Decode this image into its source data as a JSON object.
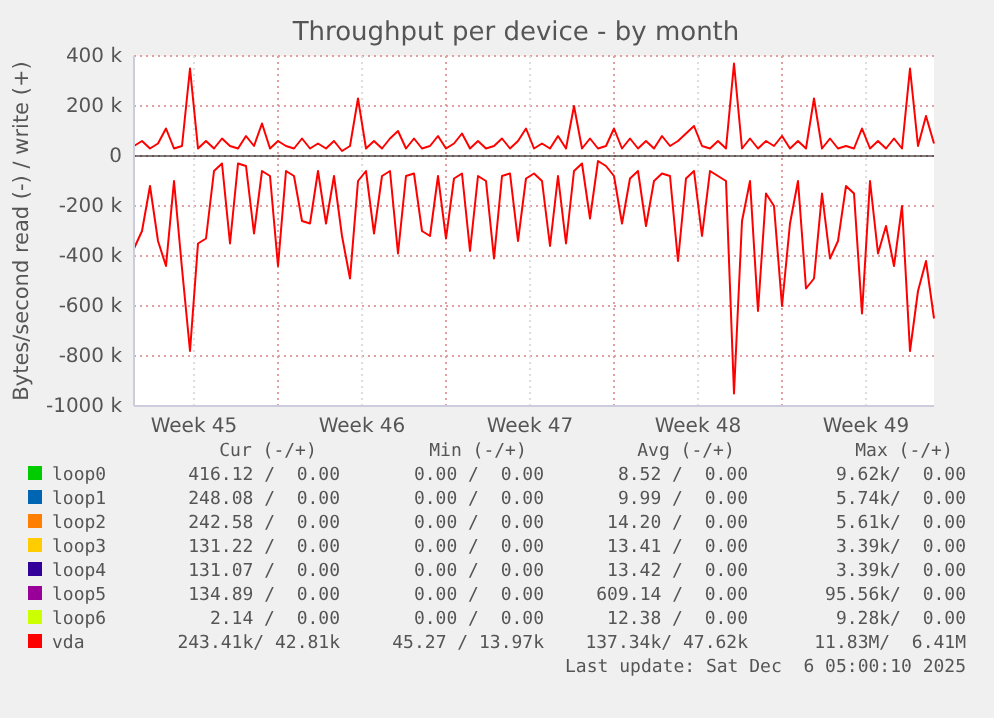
{
  "chart_data": {
    "type": "line",
    "title": "Throughput per device - by month",
    "ylabel": "Bytes/second read (-) / write (+)",
    "x": [
      "2025-11-04T00:00",
      "2025-11-04T08:00",
      "2025-11-04T16:00",
      "2025-11-05T00:00",
      "2025-11-05T08:00",
      "2025-11-05T16:00",
      "2025-11-06T00:00",
      "2025-11-06T08:00",
      "2025-11-06T16:00",
      "2025-11-07T00:00",
      "2025-11-07T08:00",
      "2025-11-07T16:00",
      "2025-11-08T00:00",
      "2025-11-08T08:00",
      "2025-11-08T16:00",
      "2025-11-09T00:00",
      "2025-11-09T08:00",
      "2025-11-09T16:00",
      "2025-11-10T00:00",
      "2025-11-10T08:00",
      "2025-11-10T16:00",
      "2025-11-11T00:00",
      "2025-11-11T08:00",
      "2025-11-11T16:00",
      "2025-11-12T00:00",
      "2025-11-12T08:00",
      "2025-11-12T16:00",
      "2025-11-13T00:00",
      "2025-11-13T08:00",
      "2025-11-13T16:00",
      "2025-11-14T00:00",
      "2025-11-14T08:00",
      "2025-11-14T16:00",
      "2025-11-15T00:00",
      "2025-11-15T08:00",
      "2025-11-15T16:00",
      "2025-11-16T00:00",
      "2025-11-16T08:00",
      "2025-11-16T16:00",
      "2025-11-17T00:00",
      "2025-11-17T08:00",
      "2025-11-17T16:00",
      "2025-11-18T00:00",
      "2025-11-18T08:00",
      "2025-11-18T16:00",
      "2025-11-19T00:00",
      "2025-11-19T08:00",
      "2025-11-19T16:00",
      "2025-11-20T00:00",
      "2025-11-20T08:00",
      "2025-11-20T16:00",
      "2025-11-21T00:00",
      "2025-11-21T08:00",
      "2025-11-21T16:00",
      "2025-11-22T00:00",
      "2025-11-22T08:00",
      "2025-11-22T16:00",
      "2025-11-23T00:00",
      "2025-11-23T08:00",
      "2025-11-23T16:00",
      "2025-11-24T00:00",
      "2025-11-24T08:00",
      "2025-11-24T16:00",
      "2025-11-25T00:00",
      "2025-11-25T08:00",
      "2025-11-25T16:00",
      "2025-11-26T00:00",
      "2025-11-26T08:00",
      "2025-11-26T16:00",
      "2025-11-27T00:00",
      "2025-11-27T08:00",
      "2025-11-27T16:00",
      "2025-11-28T00:00",
      "2025-11-28T08:00",
      "2025-11-28T16:00",
      "2025-11-29T00:00",
      "2025-11-29T08:00",
      "2025-11-29T16:00",
      "2025-11-30T00:00",
      "2025-11-30T08:00",
      "2025-11-30T16:00",
      "2025-12-01T00:00",
      "2025-12-01T08:00",
      "2025-12-01T16:00",
      "2025-12-02T00:00",
      "2025-12-02T08:00",
      "2025-12-02T16:00",
      "2025-12-03T00:00",
      "2025-12-03T08:00",
      "2025-12-03T16:00",
      "2025-12-04T00:00",
      "2025-12-04T08:00",
      "2025-12-04T16:00",
      "2025-12-05T00:00",
      "2025-12-05T08:00",
      "2025-12-05T16:00",
      "2025-12-06T00:00",
      "2025-12-06T08:00",
      "2025-12-06T16:00",
      "2025-12-07T00:00",
      "2025-12-07T08:00"
    ],
    "xlim": [
      "2025-11-04T00:00",
      "2025-12-07T08:00"
    ],
    "xticks": [
      {
        "value": "2025-11-06T12:00",
        "label": "Week 45"
      },
      {
        "value": "2025-11-10T00:00",
        "label": null
      },
      {
        "value": "2025-11-13T12:00",
        "label": "Week 46"
      },
      {
        "value": "2025-11-17T00:00",
        "label": null
      },
      {
        "value": "2025-11-20T12:00",
        "label": "Week 47"
      },
      {
        "value": "2025-11-24T00:00",
        "label": null
      },
      {
        "value": "2025-11-27T12:00",
        "label": "Week 48"
      },
      {
        "value": "2025-12-01T00:00",
        "label": null
      },
      {
        "value": "2025-12-04T12:00",
        "label": "Week 49"
      }
    ],
    "ylim": [
      -1000000,
      400000
    ],
    "yticks": [
      {
        "value": -1000000,
        "label": "-1000 k"
      },
      {
        "value": -800000,
        "label": "-800 k"
      },
      {
        "value": -600000,
        "label": "-600 k"
      },
      {
        "value": -400000,
        "label": "-400 k"
      },
      {
        "value": -200000,
        "label": "-200 k"
      },
      {
        "value": 0,
        "label": "0"
      },
      {
        "value": 200000,
        "label": "200 k"
      },
      {
        "value": 400000,
        "label": "400 k"
      }
    ],
    "grid": true,
    "legend": "bottom",
    "marker": "none",
    "line_style": "solid",
    "series": [
      {
        "name": "loop0",
        "color": "#00cc00",
        "values": [
          null,
          null,
          null,
          null,
          null,
          null,
          null,
          null,
          null,
          null,
          null,
          null,
          null,
          null,
          null,
          null,
          null,
          null,
          null,
          null,
          null,
          null,
          null,
          null,
          null,
          null,
          null,
          null,
          null,
          null,
          null,
          null,
          null,
          null,
          null,
          null,
          null,
          null,
          null,
          null,
          null,
          null,
          null,
          null,
          null,
          null,
          null,
          null,
          null,
          null,
          null,
          null,
          null,
          null,
          null,
          null,
          null,
          null,
          null,
          null,
          null,
          null,
          null,
          null,
          null,
          null,
          null,
          null,
          null,
          null,
          null,
          null,
          null,
          null,
          null,
          null,
          null,
          null,
          null,
          null,
          null,
          null,
          null,
          null,
          null,
          null,
          null,
          null,
          null,
          null,
          null,
          null,
          null,
          null,
          null,
          null,
          null,
          null,
          null,
          null,
          null
        ]
      },
      {
        "name": "loop1",
        "color": "#0066b3",
        "values": [
          null,
          null,
          null,
          null,
          null,
          null,
          null,
          null,
          null,
          null,
          null,
          null,
          null,
          null,
          null,
          null,
          null,
          null,
          null,
          null,
          null,
          null,
          null,
          null,
          null,
          null,
          null,
          null,
          null,
          null,
          null,
          null,
          null,
          null,
          null,
          null,
          null,
          null,
          null,
          null,
          null,
          null,
          null,
          null,
          null,
          null,
          null,
          null,
          null,
          null,
          null,
          null,
          null,
          null,
          null,
          null,
          null,
          null,
          null,
          null,
          null,
          null,
          null,
          null,
          null,
          null,
          null,
          null,
          null,
          null,
          null,
          null,
          null,
          null,
          null,
          null,
          null,
          null,
          null,
          null,
          null,
          null,
          null,
          null,
          null,
          null,
          null,
          null,
          null,
          null,
          null,
          null,
          null,
          null,
          null,
          null,
          null,
          null,
          null,
          null,
          null
        ]
      },
      {
        "name": "loop2",
        "color": "#ff8000",
        "values": [
          null,
          null,
          null,
          null,
          null,
          null,
          null,
          null,
          null,
          null,
          null,
          null,
          null,
          null,
          null,
          null,
          null,
          null,
          null,
          null,
          null,
          null,
          null,
          null,
          null,
          null,
          null,
          null,
          null,
          null,
          null,
          null,
          null,
          null,
          null,
          null,
          null,
          null,
          null,
          null,
          null,
          null,
          null,
          null,
          null,
          null,
          null,
          null,
          null,
          null,
          null,
          null,
          null,
          null,
          null,
          null,
          null,
          null,
          null,
          null,
          null,
          null,
          null,
          null,
          null,
          null,
          null,
          null,
          null,
          null,
          null,
          null,
          null,
          null,
          null,
          null,
          null,
          null,
          null,
          null,
          null,
          null,
          null,
          null,
          null,
          null,
          null,
          null,
          null,
          null,
          null,
          null,
          null,
          null,
          null,
          null,
          null,
          null,
          null,
          null,
          null
        ]
      },
      {
        "name": "loop3",
        "color": "#ffcc00",
        "values": [
          null,
          null,
          null,
          null,
          null,
          null,
          null,
          null,
          null,
          null,
          null,
          null,
          null,
          null,
          null,
          null,
          null,
          null,
          null,
          null,
          null,
          null,
          null,
          null,
          null,
          null,
          null,
          null,
          null,
          null,
          null,
          null,
          null,
          null,
          null,
          null,
          null,
          null,
          null,
          null,
          null,
          null,
          null,
          null,
          null,
          null,
          null,
          null,
          null,
          null,
          null,
          null,
          null,
          null,
          null,
          null,
          null,
          null,
          null,
          null,
          null,
          null,
          null,
          null,
          null,
          null,
          null,
          null,
          null,
          null,
          null,
          null,
          null,
          null,
          null,
          null,
          null,
          null,
          null,
          null,
          null,
          null,
          null,
          null,
          null,
          null,
          null,
          null,
          null,
          null,
          null,
          null,
          null,
          null,
          null,
          null,
          null,
          null,
          null,
          null,
          null
        ]
      },
      {
        "name": "loop4",
        "color": "#330099",
        "values": [
          null,
          null,
          null,
          null,
          null,
          null,
          null,
          null,
          null,
          null,
          null,
          null,
          null,
          null,
          null,
          null,
          null,
          null,
          null,
          null,
          null,
          null,
          null,
          null,
          null,
          null,
          null,
          null,
          null,
          null,
          null,
          null,
          null,
          null,
          null,
          null,
          null,
          null,
          null,
          null,
          null,
          null,
          null,
          null,
          null,
          null,
          null,
          null,
          null,
          null,
          null,
          null,
          null,
          null,
          null,
          null,
          null,
          null,
          null,
          null,
          null,
          null,
          null,
          null,
          null,
          null,
          null,
          null,
          null,
          null,
          null,
          null,
          null,
          null,
          null,
          null,
          null,
          null,
          null,
          null,
          null,
          null,
          null,
          null,
          null,
          null,
          null,
          null,
          null,
          null,
          null,
          null,
          null,
          null,
          null,
          null,
          null,
          null,
          null,
          null,
          null
        ]
      },
      {
        "name": "loop5",
        "color": "#990099",
        "values": [
          null,
          null,
          null,
          null,
          null,
          null,
          null,
          null,
          null,
          null,
          null,
          null,
          null,
          null,
          null,
          null,
          null,
          null,
          null,
          null,
          null,
          null,
          null,
          null,
          null,
          null,
          null,
          null,
          null,
          null,
          null,
          null,
          null,
          null,
          null,
          null,
          null,
          null,
          null,
          null,
          null,
          null,
          null,
          null,
          null,
          null,
          null,
          null,
          null,
          null,
          null,
          null,
          null,
          null,
          null,
          null,
          null,
          null,
          null,
          null,
          null,
          null,
          null,
          null,
          null,
          null,
          null,
          null,
          null,
          null,
          null,
          null,
          null,
          null,
          null,
          null,
          null,
          null,
          null,
          null,
          null,
          null,
          null,
          null,
          null,
          null,
          null,
          null,
          null,
          null,
          null,
          null,
          null,
          null,
          null,
          null,
          null,
          null,
          null,
          null,
          null
        ]
      },
      {
        "name": "loop6",
        "color": "#ccff00",
        "values": [
          null,
          null,
          null,
          null,
          null,
          null,
          null,
          null,
          null,
          null,
          null,
          null,
          null,
          null,
          null,
          null,
          null,
          null,
          null,
          null,
          null,
          null,
          null,
          null,
          null,
          null,
          null,
          null,
          null,
          null,
          null,
          null,
          null,
          null,
          null,
          null,
          null,
          null,
          null,
          null,
          null,
          null,
          null,
          null,
          null,
          null,
          null,
          null,
          null,
          null,
          null,
          null,
          null,
          null,
          null,
          null,
          null,
          null,
          null,
          null,
          null,
          null,
          null,
          null,
          null,
          null,
          null,
          null,
          null,
          null,
          null,
          null,
          null,
          null,
          null,
          null,
          null,
          null,
          null,
          null,
          null,
          null,
          null,
          null,
          null,
          null,
          null,
          null,
          null,
          null,
          null,
          null,
          null,
          null,
          null,
          null,
          null,
          null,
          null,
          null,
          null
        ]
      },
      {
        "name": "vda",
        "color": "#ff0000",
        "values": [
          40000,
          60000,
          30000,
          50000,
          110000,
          30000,
          40000,
          350000,
          30000,
          60000,
          30000,
          70000,
          40000,
          30000,
          80000,
          40000,
          130000,
          30000,
          60000,
          40000,
          30000,
          70000,
          30000,
          50000,
          30000,
          60000,
          20000,
          40000,
          230000,
          30000,
          60000,
          30000,
          70000,
          100000,
          30000,
          70000,
          30000,
          40000,
          80000,
          30000,
          50000,
          90000,
          30000,
          60000,
          30000,
          40000,
          70000,
          30000,
          60000,
          110000,
          30000,
          50000,
          30000,
          80000,
          30000,
          200000,
          30000,
          70000,
          30000,
          40000,
          110000,
          30000,
          70000,
          30000,
          60000,
          30000,
          80000,
          40000,
          60000,
          90000,
          120000,
          40000,
          30000,
          60000,
          30000,
          370000,
          30000,
          70000,
          30000,
          60000,
          40000,
          80000,
          30000,
          60000,
          30000,
          230000,
          30000,
          70000,
          30000,
          40000,
          30000,
          110000,
          30000,
          60000,
          30000,
          70000,
          30000,
          350000,
          40000,
          160000,
          50000
        ]
      },
      {
        "color": "#ff0000",
        "values": [
          -370000,
          -300000,
          -120000,
          -340000,
          -440000,
          -100000,
          -450000,
          -780000,
          -350000,
          -330000,
          -60000,
          -30000,
          -350000,
          -30000,
          -40000,
          -310000,
          -60000,
          -80000,
          -440000,
          -60000,
          -80000,
          -260000,
          -270000,
          -60000,
          -270000,
          -80000,
          -320000,
          -490000,
          -100000,
          -60000,
          -310000,
          -80000,
          -60000,
          -390000,
          -80000,
          -70000,
          -300000,
          -320000,
          -80000,
          -330000,
          -90000,
          -70000,
          -380000,
          -80000,
          -100000,
          -410000,
          -80000,
          -70000,
          -340000,
          -90000,
          -70000,
          -100000,
          -360000,
          -80000,
          -350000,
          -60000,
          -30000,
          -250000,
          -20000,
          -40000,
          -80000,
          -270000,
          -90000,
          -60000,
          -280000,
          -100000,
          -70000,
          -80000,
          -420000,
          -90000,
          -60000,
          -320000,
          -60000,
          -80000,
          -100000,
          -950000,
          -260000,
          -100000,
          -620000,
          -150000,
          -200000,
          -600000,
          -270000,
          -100000,
          -530000,
          -490000,
          -150000,
          -410000,
          -340000,
          -120000,
          -150000,
          -630000,
          -100000,
          -390000,
          -280000,
          -440000,
          -200000,
          -780000,
          -540000,
          -420000,
          -650000
        ]
      }
    ],
    "annotations": [
      "Cur (-/+)",
      "Min (-/+)",
      "Avg (-/+)",
      "Max (-/+)",
      "416.12 /  0.00",
      "0.00 /  0.00",
      "8.52 /  0.00",
      "9.62k/  0.00",
      "248.08 /  0.00",
      "0.00 /  0.00",
      "9.99 /  0.00",
      "5.74k/  0.00",
      "242.58 /  0.00",
      "0.00 /  0.00",
      "14.20 /  0.00",
      "5.61k/  0.00",
      "131.22 /  0.00",
      "0.00 /  0.00",
      "13.41 /  0.00",
      "3.39k/  0.00",
      "131.07 /  0.00",
      "0.00 /  0.00",
      "13.42 /  0.00",
      "3.39k/  0.00",
      "134.89 /  0.00",
      "0.00 /  0.00",
      "609.14 /  0.00",
      "95.56k/  0.00",
      "2.14 /  0.00",
      "0.00 /  0.00",
      "12.38 /  0.00",
      "9.28k/  0.00",
      "243.41k/ 42.81k",
      "45.27 / 13.97k",
      "137.34k/ 47.62k",
      "11.83M/  6.41M",
      "Last update: Sat Dec  6 05:00:10 2025"
    ]
  }
}
